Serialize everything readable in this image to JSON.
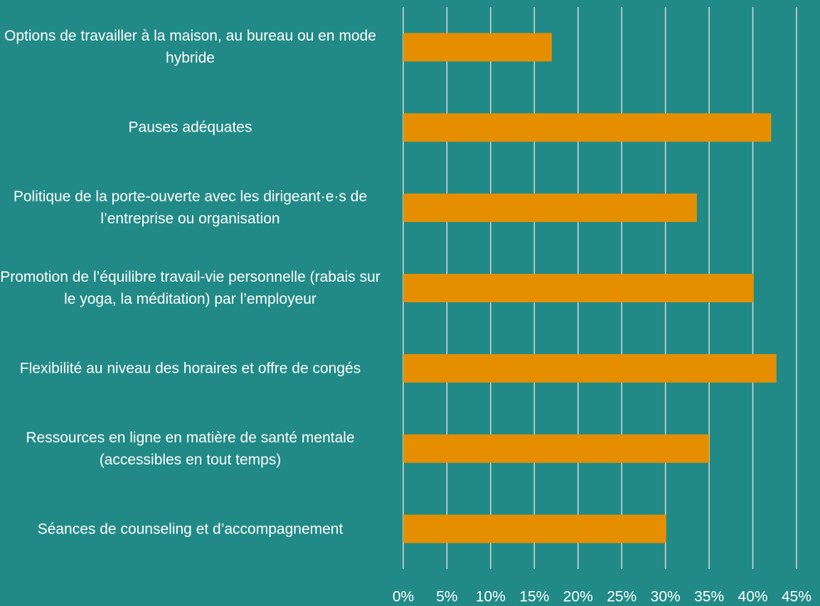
{
  "chart_data": {
    "type": "barh",
    "categories": [
      "Options de travailler à la maison, au bureau ou en mode hybride",
      "Pauses adéquates",
      "Politique de la porte-ouverte avec les dirigeant·e·s de l’entreprise ou organisation",
      "Promotion de l’équilibre travail-vie personnelle (rabais sur le yoga, la méditation) par l’employeur",
      "Flexibilité au niveau des horaires et offre de congés",
      "Ressources en ligne en matière de santé mentale (accessibles en tout temps)",
      "Séances de counseling et d’accompagnement"
    ],
    "values": [
      17.0,
      42.1,
      33.6,
      40.1,
      42.7,
      35.0,
      30.1
    ],
    "color": "#e58f00",
    "xlim": [
      0,
      45
    ],
    "xticks": [
      {
        "value": 0,
        "label": "0%"
      },
      {
        "value": 5,
        "label": "5%"
      },
      {
        "value": 10,
        "label": "10%"
      },
      {
        "value": 15,
        "label": "15%"
      },
      {
        "value": 20,
        "label": "20%"
      },
      {
        "value": 25,
        "label": "25%"
      },
      {
        "value": 30,
        "label": "30%"
      },
      {
        "value": 35,
        "label": "35%"
      },
      {
        "value": 40,
        "label": "40%"
      },
      {
        "value": 45,
        "label": "45%"
      }
    ],
    "grid": true
  }
}
